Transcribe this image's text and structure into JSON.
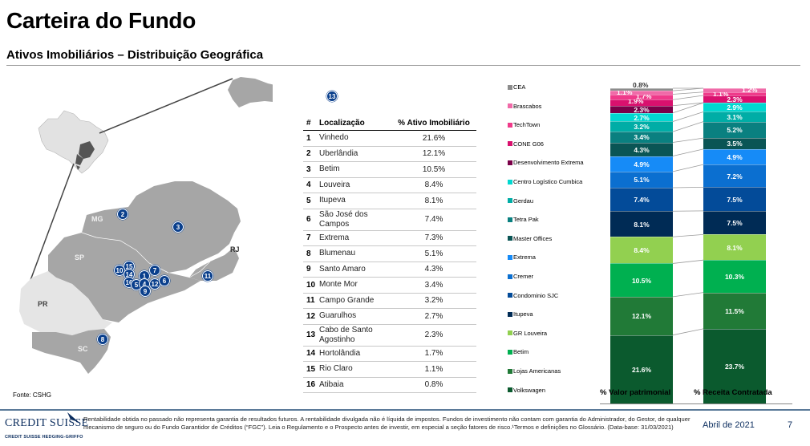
{
  "header": {
    "title": "Carteira do Fundo",
    "subtitle": "Ativos Imobiliários – Distribuição Geográfica"
  },
  "map": {
    "source": "Fonte: CSHG",
    "state_labels": [
      "MG",
      "SP",
      "RJ",
      "PR",
      "SC"
    ],
    "markers": [
      "1",
      "2",
      "3",
      "4",
      "5",
      "6",
      "7",
      "8",
      "9",
      "10",
      "11",
      "12",
      "13",
      "14",
      "15",
      "16"
    ]
  },
  "table": {
    "headers": {
      "num": "#",
      "location": "Localização",
      "pct": "% Ativo Imobiliário"
    },
    "rows": [
      {
        "num": "1",
        "location": "Vinhedo",
        "pct": "21.6%"
      },
      {
        "num": "2",
        "location": "Uberlândia",
        "pct": "12.1%"
      },
      {
        "num": "3",
        "location": "Betim",
        "pct": "10.5%"
      },
      {
        "num": "4",
        "location": "Louveira",
        "pct": "8.4%"
      },
      {
        "num": "5",
        "location": "Itupeva",
        "pct": "8.1%"
      },
      {
        "num": "6",
        "location": "São José dos Campos",
        "pct": "7.4%"
      },
      {
        "num": "7",
        "location": "Extrema",
        "pct": "7.3%"
      },
      {
        "num": "8",
        "location": "Blumenau",
        "pct": "5.1%"
      },
      {
        "num": "9",
        "location": "Santo Amaro",
        "pct": "4.3%"
      },
      {
        "num": "10",
        "location": "Monte Mor",
        "pct": "3.4%"
      },
      {
        "num": "11",
        "location": "Campo Grande",
        "pct": "3.2%"
      },
      {
        "num": "12",
        "location": "Guarulhos",
        "pct": "2.7%"
      },
      {
        "num": "13",
        "location": "Cabo de Santo Agostinho",
        "pct": "2.3%"
      },
      {
        "num": "14",
        "location": "Hortolândia",
        "pct": "1.7%"
      },
      {
        "num": "15",
        "location": "Rio Claro",
        "pct": "1.1%"
      },
      {
        "num": "16",
        "location": "Atibaia",
        "pct": "0.8%"
      }
    ]
  },
  "chart_data": {
    "type": "bar",
    "stacked": true,
    "title": "",
    "categories": [
      "% Valor patrimonial",
      "% Receita Contratada"
    ],
    "legend_position": "left",
    "series": [
      {
        "name": "Volkswagen",
        "color": "#0b5a2e",
        "values": [
          21.6,
          23.7
        ]
      },
      {
        "name": "Lojas Americanas",
        "color": "#217a37",
        "values": [
          12.1,
          11.5
        ]
      },
      {
        "name": "Betim",
        "color": "#00b050",
        "values": [
          10.5,
          10.3
        ]
      },
      {
        "name": "GR Louveira",
        "color": "#92d050",
        "values": [
          8.4,
          8.1
        ]
      },
      {
        "name": "Itupeva",
        "color": "#002b55",
        "values": [
          8.1,
          7.5
        ]
      },
      {
        "name": "Condominio SJC",
        "color": "#034b99",
        "values": [
          7.4,
          7.5
        ]
      },
      {
        "name": "Cremer",
        "color": "#0b6fd0",
        "values": [
          5.1,
          7.2
        ]
      },
      {
        "name": "Extrema",
        "color": "#168bf7",
        "values": [
          4.9,
          4.9
        ]
      },
      {
        "name": "Master Offices",
        "color": "#0a5555",
        "values": [
          4.3,
          3.5
        ]
      },
      {
        "name": "Tetra Pak",
        "color": "#0a8080",
        "values": [
          3.4,
          5.2
        ]
      },
      {
        "name": "Gerdau",
        "color": "#00ada6",
        "values": [
          3.2,
          3.1
        ]
      },
      {
        "name": "Centro Logístico Cumbica",
        "color": "#00d8d0",
        "values": [
          2.7,
          2.9
        ]
      },
      {
        "name": "Desenvolvimento Extrema",
        "color": "#7a0048",
        "values": [
          2.3,
          0
        ]
      },
      {
        "name": "CONE G06",
        "color": "#d9116e",
        "values": [
          1.9,
          2.3
        ]
      },
      {
        "name": "TechTown",
        "color": "#ef3a8a",
        "values": [
          1.7,
          1.1
        ]
      },
      {
        "name": "Brascabos",
        "color": "#f06aa8",
        "values": [
          1.1,
          1.2
        ]
      },
      {
        "name": "CEA",
        "color": "#8c8c8c",
        "values": [
          0.8,
          0
        ]
      }
    ],
    "labels": {
      "left": [
        "21.6%",
        "12.1%",
        "10.5%",
        "8.4%",
        "8.1%",
        "7.4%",
        "5.1%",
        "4.9%",
        "4.3%",
        "3.4%",
        "3.2%",
        "2.7%",
        "2.3%",
        "1.9%",
        "1.7%",
        "1.1%",
        "0.8%"
      ],
      "right": [
        "23.7%",
        "11.5%",
        "10.3%",
        "8.1%",
        "7.5%",
        "7.5%",
        "7.2%",
        "4.9%",
        "3.5%",
        "5.2%",
        "3.1%",
        "2.9%",
        "",
        "2.3%",
        "1.1%",
        "1.2%",
        ""
      ]
    },
    "legend_order": [
      "CEA",
      "Brascabos",
      "TechTown",
      "CONE G06",
      "Desenvolvimento Extrema",
      "Centro Logístico Cumbica",
      "Gerdau",
      "Tetra Pak",
      "Master Offices",
      "Extrema",
      "Cremer",
      "Condominio SJC",
      "Itupeva",
      "GR Louveira",
      "Betim",
      "Lojas Americanas",
      "Volkswagen"
    ],
    "xlabel": "",
    "ylabel": "",
    "grid": false
  },
  "footer": {
    "logo": "CREDIT SUISSE",
    "logo_sub": "CREDIT SUISSE HEDGING-GRIFFO",
    "disclaimer": "Rentabilidade obtida no passado não representa garantia de resultados futuros. A rentabilidade divulgada não é líquida de impostos. Fundos de investimento não contam com garantia do Administrador, do Gestor, de qualquer mecanismo de seguro ou do Fundo Garantidor de Créditos (“FGC”). Leia o Regulamento e o Prospecto antes de investir, em especial a seção fatores de risco.¹Termos  e definições no Glossário. (Data-base: 31/03/2021)",
    "date": "Abril de 2021",
    "page": "7"
  }
}
